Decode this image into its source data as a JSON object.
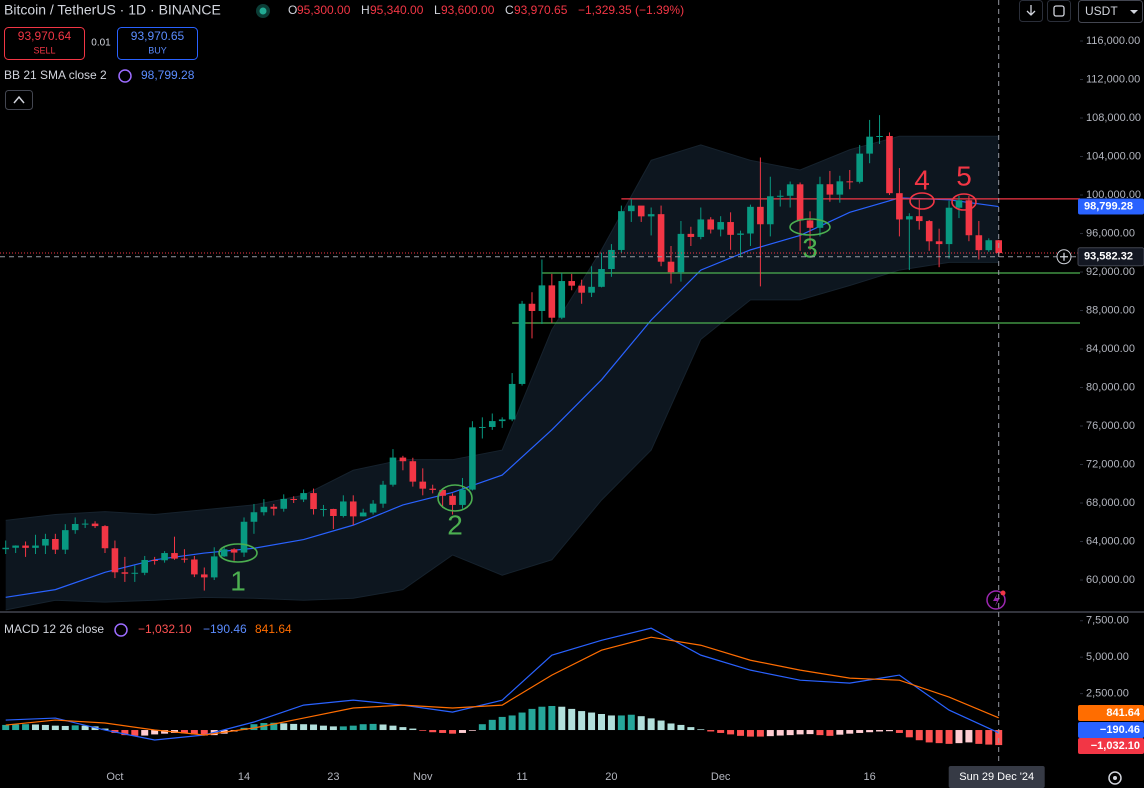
{
  "header": {
    "symbol": "Bitcoin / TetherUS · 1D · BINANCE",
    "o_key": "O",
    "o": "95,300.00",
    "h_key": "H",
    "h": "95,340.00",
    "l_key": "L",
    "l": "93,600.00",
    "c_key": "C",
    "c": "93,970.65",
    "change": "−1,329.35 (−1.39%)",
    "sell_price": "93,970.64",
    "sell": "SELL",
    "spread": "0.01",
    "buy_price": "93,970.65",
    "buy": "BUY",
    "currency": "USDT"
  },
  "chart_data": [
    {
      "type": "candlestick",
      "up_color": "#089981",
      "down_color": "#f23645",
      "open": [
        63200,
        63350,
        63580,
        63340,
        63580,
        64260,
        63150,
        65180,
        65820,
        65860,
        65600,
        63300,
        60800,
        60650,
        60750,
        62080,
        62050,
        62800,
        62220,
        62130,
        60580,
        60270,
        62450,
        63190,
        62850,
        66050,
        67040,
        67610,
        67400,
        68420,
        68360,
        69030,
        67370,
        67380,
        66650,
        68160,
        66610,
        67010,
        67930,
        69900,
        72720,
        72340,
        70220,
        69490,
        69360,
        68750,
        67800,
        69390,
        75860,
        75900,
        76510,
        76680,
        80370,
        88700,
        87950,
        90610,
        87250,
        91060,
        90580,
        89850,
        90460,
        92310,
        94290,
        98320,
        98900,
        97780,
        98010,
        93070,
        91980,
        95960,
        95640,
        97460,
        96410,
        97190,
        95860,
        96000,
        98770,
        96960,
        99870,
        99920,
        101110,
        97360,
        96590,
        101120,
        100040,
        101420,
        101370,
        104300,
        106060,
        106130,
        100190,
        97460,
        97800,
        97290,
        95190,
        94900,
        98680,
        99450,
        95820,
        94270,
        95300
      ],
      "high": [
        64100,
        63600,
        64000,
        64700,
        64800,
        64800,
        65800,
        66500,
        66300,
        66100,
        65700,
        64100,
        62400,
        61500,
        62500,
        62400,
        63000,
        64500,
        63200,
        62500,
        61300,
        63400,
        63500,
        63300,
        66500,
        67900,
        68400,
        67900,
        68900,
        68700,
        69400,
        69500,
        67800,
        67400,
        68800,
        68800,
        67400,
        68300,
        70300,
        73600,
        72900,
        72700,
        71600,
        69900,
        69400,
        69000,
        70600,
        76500,
        76900,
        77300,
        76900,
        81500,
        89000,
        89900,
        93300,
        91800,
        91900,
        91800,
        91200,
        92600,
        94000,
        94900,
        98900,
        99600,
        98800,
        98700,
        98900,
        94700,
        97300,
        96700,
        98700,
        97700,
        97800,
        98200,
        96300,
        99000,
        103900,
        101900,
        100500,
        101400,
        101300,
        98300,
        101900,
        102500,
        102000,
        102600,
        105200,
        107800,
        108300,
        106500,
        102800,
        98100,
        99500,
        97400,
        96500,
        99400,
        99900,
        99900,
        97300,
        95500,
        95340
      ],
      "low": [
        62700,
        62800,
        62400,
        62700,
        62700,
        62700,
        62700,
        64800,
        65400,
        65400,
        62800,
        60200,
        59800,
        59800,
        60500,
        61600,
        61800,
        62100,
        61800,
        60300,
        58900,
        60000,
        62400,
        62000,
        62400,
        64800,
        66700,
        66700,
        67100,
        68000,
        68100,
        66800,
        66600,
        65300,
        66500,
        65700,
        66600,
        66800,
        67500,
        69700,
        71400,
        69700,
        68800,
        69000,
        67500,
        66800,
        67400,
        69300,
        74700,
        75600,
        75800,
        76500,
        80200,
        85100,
        86600,
        86700,
        87100,
        90100,
        88700,
        89400,
        90400,
        91500,
        94000,
        97200,
        97200,
        95800,
        92600,
        90800,
        91000,
        94700,
        95400,
        96000,
        95700,
        94300,
        93600,
        94700,
        90500,
        95700,
        98800,
        98700,
        94200,
        94300,
        95700,
        99300,
        99200,
        100600,
        101200,
        103300,
        105300,
        100000,
        95700,
        92200,
        96400,
        94200,
        92500,
        93400,
        97600,
        95200,
        93300,
        94100,
        93600
      ],
      "close": [
        63350,
        63580,
        63340,
        63580,
        64260,
        63150,
        65180,
        65820,
        65860,
        65600,
        63300,
        60800,
        60650,
        60750,
        62080,
        62050,
        62800,
        62220,
        62130,
        60580,
        60270,
        62450,
        63190,
        62850,
        66050,
        67040,
        67610,
        67400,
        68420,
        68360,
        69030,
        67370,
        67380,
        66650,
        68160,
        66610,
        67010,
        67930,
        69900,
        72720,
        72340,
        70220,
        69490,
        69360,
        68750,
        67800,
        69390,
        75860,
        75900,
        76510,
        76680,
        80370,
        88700,
        87950,
        90610,
        87250,
        91060,
        90580,
        89850,
        90460,
        92310,
        94290,
        98320,
        98900,
        97780,
        98010,
        93070,
        91980,
        95960,
        95640,
        97460,
        96410,
        97190,
        95860,
        96000,
        98770,
        96960,
        99870,
        99920,
        101110,
        97360,
        96590,
        101120,
        100040,
        101420,
        101370,
        104300,
        106060,
        106130,
        100190,
        97460,
        97800,
        97290,
        95190,
        94900,
        98680,
        99450,
        95820,
        94270,
        95300,
        93970.65
      ],
      "ylim": [
        56675,
        120260
      ],
      "yticks": [
        {
          "value": 60000,
          "label": "60,000.00"
        },
        {
          "value": 64000,
          "label": "64,000.00"
        },
        {
          "value": 68000,
          "label": "68,000.00"
        },
        {
          "value": 72000,
          "label": "72,000.00"
        },
        {
          "value": 76000,
          "label": "76,000.00"
        },
        {
          "value": 80000,
          "label": "80,000.00"
        },
        {
          "value": 84000,
          "label": "84,000.00"
        },
        {
          "value": 88000,
          "label": "88,000.00"
        },
        {
          "value": 92000,
          "label": "92,000.00"
        },
        {
          "value": 96000,
          "label": "96,000.00"
        },
        {
          "value": 100000,
          "label": "100,000.00"
        },
        {
          "value": 104000,
          "label": "104,000.00"
        },
        {
          "value": 108000,
          "label": "108,000.00"
        },
        {
          "value": 112000,
          "label": "112,000.00"
        },
        {
          "value": 116000,
          "label": "116,000.00"
        }
      ],
      "x_labels": [
        {
          "index": 11,
          "label": "Oct"
        },
        {
          "index": 24,
          "label": "14"
        },
        {
          "index": 33,
          "label": "23"
        },
        {
          "index": 42,
          "label": "Nov"
        },
        {
          "index": 52,
          "label": "11"
        },
        {
          "index": 61,
          "label": "20"
        },
        {
          "index": 72,
          "label": "Dec"
        },
        {
          "index": 87,
          "label": "16"
        }
      ],
      "crosshair": {
        "index": 100,
        "value": 93582.32,
        "label": "Sun 29 Dec '24",
        "price_label": "93,582.32"
      },
      "bb": {
        "name": "BB 21 SMA close 2",
        "color": "#2962ff",
        "fill": "#0d161f",
        "x": [
          0,
          5,
          10,
          15,
          20,
          25,
          30,
          35,
          40,
          45,
          50,
          55,
          60,
          65,
          70,
          75,
          80,
          85,
          90,
          95,
          100
        ],
        "basis": [
          58200,
          59000,
          60800,
          62100,
          62800,
          63300,
          64200,
          65700,
          67800,
          69100,
          70900,
          75600,
          80800,
          87000,
          92200,
          94300,
          95800,
          98200,
          99700,
          99500,
          98799.28
        ],
        "upper": [
          66200,
          66800,
          67100,
          66800,
          67300,
          67800,
          68800,
          71400,
          72500,
          72500,
          73500,
          86000,
          94300,
          103600,
          105200,
          103600,
          102600,
          104700,
          106100,
          106100,
          106100
        ],
        "lower": [
          56900,
          57900,
          57700,
          57900,
          58200,
          58100,
          57900,
          58100,
          59000,
          62600,
          60500,
          62100,
          68300,
          73500,
          85000,
          89100,
          89100,
          90600,
          92200,
          93000,
          93000
        ],
        "value_label": "98,799.28"
      },
      "levels": [
        {
          "value": 99600,
          "color": "#f23645"
        },
        {
          "value": 91900,
          "color": "#4caf50"
        },
        {
          "value": 86700,
          "color": "#4caf50"
        }
      ],
      "annotations": [
        {
          "label": "1",
          "color": "#4caf50"
        },
        {
          "label": "2",
          "color": "#4caf50"
        },
        {
          "label": "3",
          "color": "#4caf50"
        },
        {
          "label": "4",
          "color": "#f23645"
        },
        {
          "label": "5",
          "color": "#f23645"
        }
      ]
    },
    {
      "type": "macd",
      "title": "MACD 12 26 close",
      "ylim": [
        -2400,
        8100
      ],
      "yticks": [
        {
          "value": 2500,
          "label": "2,500.00"
        },
        {
          "value": 5000,
          "label": "5,000.00"
        },
        {
          "value": 7500,
          "label": "7,500.00"
        }
      ],
      "histogram_colors": [
        "#26a69a",
        "#b2dfdb",
        "#ff5252",
        "#ffcdd2"
      ],
      "histogram": [
        350,
        380,
        400,
        380,
        350,
        300,
        280,
        320,
        300,
        250,
        100,
        -200,
        -350,
        -400,
        -380,
        -300,
        -250,
        -200,
        -220,
        -300,
        -380,
        -350,
        -250,
        -100,
        150,
        400,
        480,
        500,
        460,
        420,
        400,
        380,
        300,
        250,
        250,
        300,
        400,
        420,
        380,
        300,
        200,
        100,
        -50,
        -150,
        -200,
        -250,
        -200,
        -50,
        400,
        700,
        900,
        1000,
        1200,
        1450,
        1600,
        1650,
        1600,
        1450,
        1300,
        1200,
        1100,
        1000,
        1000,
        1050,
        950,
        800,
        650,
        450,
        350,
        200,
        50,
        -100,
        -200,
        -300,
        -400,
        -450,
        -450,
        -420,
        -380,
        -350,
        -300,
        -280,
        -350,
        -400,
        -320,
        -250,
        -200,
        -150,
        -100,
        -80,
        -200,
        -500,
        -700,
        -850,
        -900,
        -950,
        -900,
        -850,
        -950,
        -1000,
        -1032.1
      ],
      "histogram_label": "−1,032.10",
      "series": [
        {
          "color": "#2962ff",
          "x": [
            0,
            5,
            10,
            15,
            20,
            25,
            30,
            35,
            40,
            45,
            50,
            55,
            60,
            65,
            70,
            75,
            80,
            85,
            90,
            95,
            100
          ],
          "values": [
            685,
            820,
            0,
            -685,
            -340,
            550,
            1710,
            2050,
            1710,
            1230,
            2050,
            5140,
            6160,
            6990,
            5140,
            4110,
            3420,
            3220,
            3770,
            1370,
            -190.46
          ],
          "value_label": "−190.46"
        },
        {
          "color": "#ff6d00",
          "x": [
            0,
            5,
            10,
            15,
            20,
            25,
            30,
            35,
            40,
            45,
            50,
            55,
            60,
            65,
            70,
            75,
            80,
            85,
            90,
            95,
            100
          ],
          "values": [
            340,
            685,
            480,
            0,
            -340,
            140,
            820,
            1510,
            1710,
            1510,
            1710,
            3770,
            5480,
            6370,
            5820,
            4790,
            4110,
            3560,
            3420,
            2260,
            841.64
          ],
          "value_label": "841.64"
        }
      ]
    }
  ]
}
